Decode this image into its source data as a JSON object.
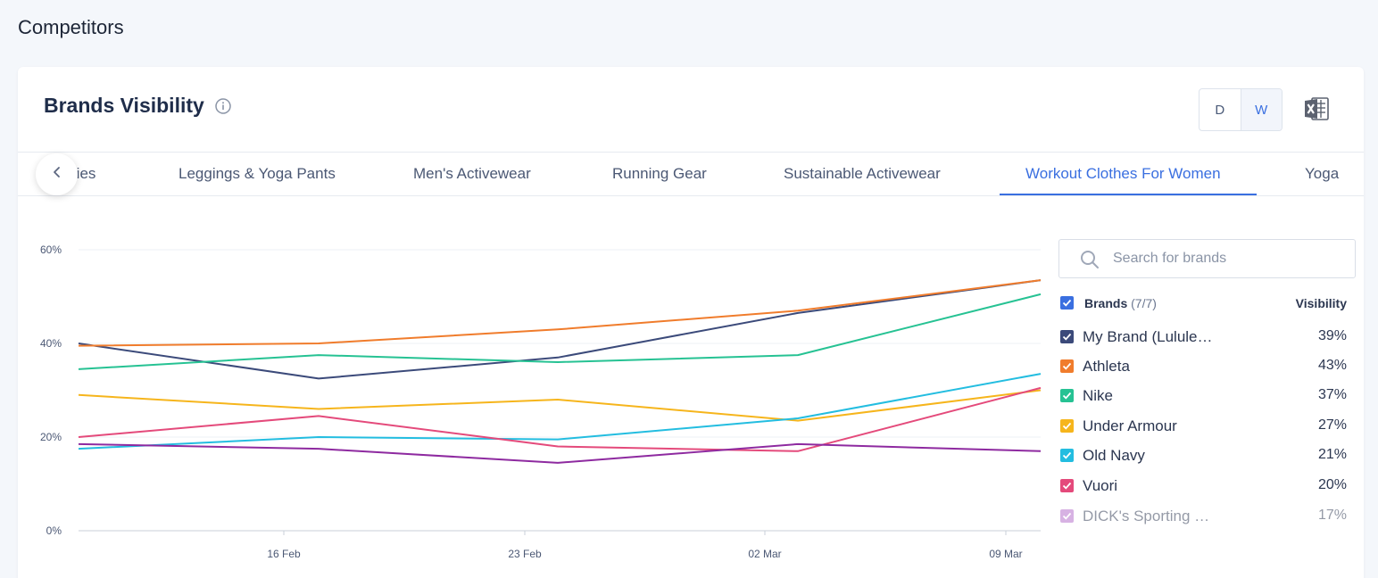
{
  "page": {
    "title": "Competitors"
  },
  "card": {
    "title": "Brands Visibility",
    "toggle": {
      "d_label": "D",
      "w_label": "W",
      "active": "W"
    }
  },
  "tabs": [
    {
      "label": "ries",
      "active": false
    },
    {
      "label": "Leggings & Yoga Pants",
      "active": false
    },
    {
      "label": "Men's Activewear",
      "active": false
    },
    {
      "label": "Running Gear",
      "active": false
    },
    {
      "label": "Sustainable Activewear",
      "active": false
    },
    {
      "label": "Workout Clothes For Women",
      "active": true
    },
    {
      "label": "Yoga",
      "active": false
    }
  ],
  "search": {
    "placeholder": "Search for brands",
    "value": ""
  },
  "legend": {
    "brands_label": "Brands",
    "brands_count": "(7/7)",
    "visibility_label": "Visibility",
    "items": [
      {
        "name": "My Brand (Lululemon)",
        "display_name": "My Brand (Lulule…",
        "value": "39%",
        "color": "#3b4a7a"
      },
      {
        "name": "Athleta",
        "display_name": "Athleta",
        "value": "43%",
        "color": "#f07c2c"
      },
      {
        "name": "Nike",
        "display_name": "Nike",
        "value": "37%",
        "color": "#26c293"
      },
      {
        "name": "Under Armour",
        "display_name": "Under Armour",
        "value": "27%",
        "color": "#f6b51c"
      },
      {
        "name": "Old Navy",
        "display_name": "Old Navy",
        "value": "21%",
        "color": "#23bde0"
      },
      {
        "name": "Vuori",
        "display_name": "Vuori",
        "value": "20%",
        "color": "#e44a7b"
      },
      {
        "name": "DICK's Sporting Goods",
        "display_name": "DICK's Sporting …",
        "value": "17%",
        "color": "#b067c8",
        "faded": true
      }
    ]
  },
  "chart_data": {
    "type": "line",
    "x_tick_labels": [
      "16 Feb",
      "23 Feb",
      "02 Mar",
      "09 Mar"
    ],
    "y_tick_labels": [
      "0%",
      "20%",
      "40%",
      "60%"
    ],
    "ylim": [
      0,
      60
    ],
    "x": [
      "10 Feb",
      "17 Feb",
      "24 Feb",
      "03 Mar",
      "10 Mar"
    ],
    "grid": true,
    "series": [
      {
        "name": "My Brand (Lululemon)",
        "color": "#3b4a7a",
        "values": [
          40,
          32.5,
          37,
          46.5,
          53.5
        ]
      },
      {
        "name": "Athleta",
        "color": "#f07c2c",
        "values": [
          39.5,
          40,
          43,
          47,
          53.5
        ]
      },
      {
        "name": "Nike",
        "color": "#26c293",
        "values": [
          34.5,
          37.5,
          36,
          37.5,
          50.5
        ]
      },
      {
        "name": "Under Armour",
        "color": "#f6b51c",
        "values": [
          29,
          26,
          28,
          23.5,
          30
        ]
      },
      {
        "name": "Old Navy",
        "color": "#23bde0",
        "values": [
          17.5,
          20,
          19.5,
          24,
          33.5
        ]
      },
      {
        "name": "Vuori",
        "color": "#e44a7b",
        "values": [
          20,
          24.5,
          18,
          17,
          30.5
        ]
      },
      {
        "name": "DICK's Sporting Goods",
        "color": "#8e2aa0",
        "values": [
          18.5,
          17.5,
          14.5,
          18.5,
          17
        ]
      }
    ]
  }
}
